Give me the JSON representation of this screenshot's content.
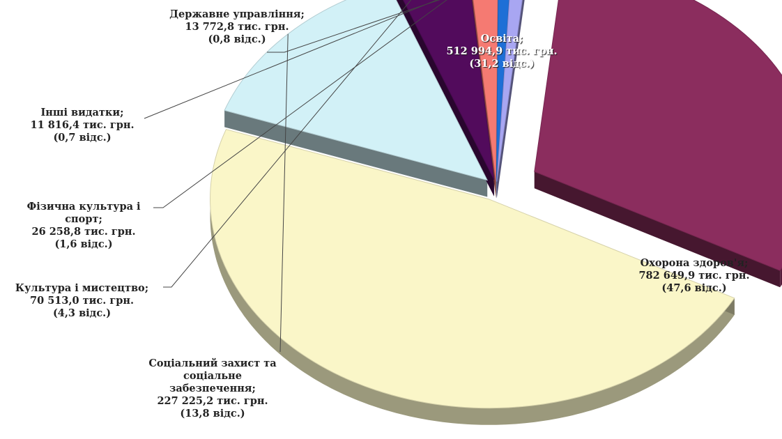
{
  "chart_data": {
    "type": "pie",
    "title": "",
    "value_unit": "тис. грн.",
    "share_unit": "відс.",
    "slices": [
      {
        "name": "Освіта;",
        "value": "512 994,9 тис. грн.",
        "share": "(31,2 відс.)",
        "amount": 512994.9,
        "percent": 31.2,
        "color": "#8B2D5E"
      },
      {
        "name": "Охорона здоров'я;",
        "value": "782 649,9 тис. грн.",
        "share": "(47,6 відс.)",
        "amount": 782649.9,
        "percent": 47.6,
        "color": "#FAF6C8"
      },
      {
        "name_lines": [
          "Соціальний захист та",
          "соціальне",
          "забезпечення;"
        ],
        "value": "227 225,2 тис. грн.",
        "share": "(13,8 відс.)",
        "amount": 227225.2,
        "percent": 13.8,
        "color": "#D2F1F7"
      },
      {
        "name": "Культура і мистецтво;",
        "value": "70 513,0 тис. грн.",
        "share": "(4,3 відс.)",
        "amount": 70513.0,
        "percent": 4.3,
        "color": "#520B5C"
      },
      {
        "name_lines": [
          "Фізична культура і",
          "спорт;"
        ],
        "value": "26 258,8 тис. грн.",
        "share": "(1,6 відс.)",
        "amount": 26258.8,
        "percent": 1.6,
        "color": "#F57A72"
      },
      {
        "name": "Інші видатки;",
        "value": "11 816,4 тис. грн.",
        "share": "(0,7 відс.)",
        "amount": 11816.4,
        "percent": 0.7,
        "color": "#1E6FD6"
      },
      {
        "name": "Державне управління;",
        "value": "13 772,8 тис. грн.",
        "share": "(0,8 відс.)",
        "amount": 13772.8,
        "percent": 0.8,
        "color": "#A8A6F2"
      }
    ]
  }
}
